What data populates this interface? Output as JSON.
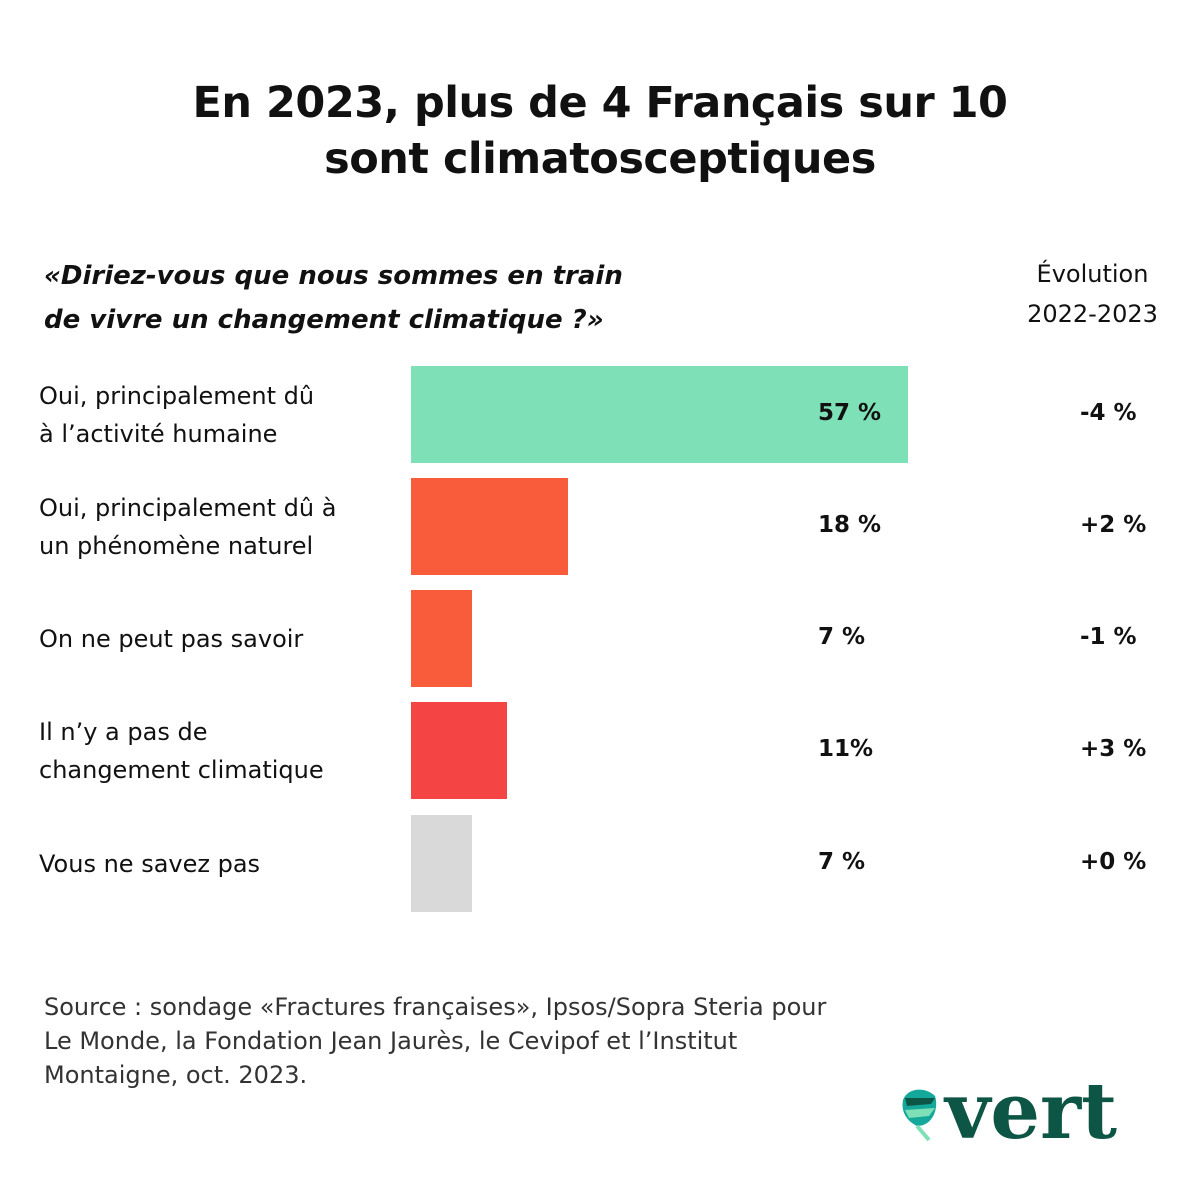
{
  "chart_data": {
    "type": "bar",
    "orientation": "horizontal",
    "title": "En 2023, plus de 4 Français sur 10 sont climatosceptiques",
    "title_lines": [
      "En 2023, plus de 4 Français sur 10",
      "sont climatosceptiques"
    ],
    "subtitle_lines": [
      "«Diriez-vous que nous sommes en train",
      "de vivre un changement climatique ?»"
    ],
    "evolution_header_lines": [
      "Évolution",
      "2022-2023"
    ],
    "xlim": [
      0,
      100
    ],
    "grid": false,
    "categories": [
      [
        "Oui, principalement dû",
        "à l’activité humaine"
      ],
      [
        "Oui, principalement dû à",
        "un phénomène naturel"
      ],
      [
        "On ne peut pas savoir"
      ],
      [
        "Il n’y a pas de",
        "changement climatique"
      ],
      [
        "Vous ne savez pas"
      ]
    ],
    "values": [
      57,
      18,
      7,
      11,
      7
    ],
    "value_labels": [
      "57 %",
      "18 %",
      "7 %",
      "11%",
      "7 %"
    ],
    "evolution": [
      "-4 %",
      "+2 %",
      "-1 %",
      "+3 %",
      "+0 %"
    ],
    "colors": [
      "#7ee0b6",
      "#f95c3a",
      "#f95c3a",
      "#f44444",
      "#d9d9d9"
    ]
  },
  "source_lines": [
    "Source : sondage «Fractures françaises», Ipsos/Sopra Steria pour",
    "Le Monde, la Fondation Jean Jaurès, le Cevipof et l’Institut",
    "Montaigne, oct. 2023."
  ],
  "logo": {
    "text": "vert",
    "color": "#0d5544",
    "icon": "leaf-icon"
  }
}
